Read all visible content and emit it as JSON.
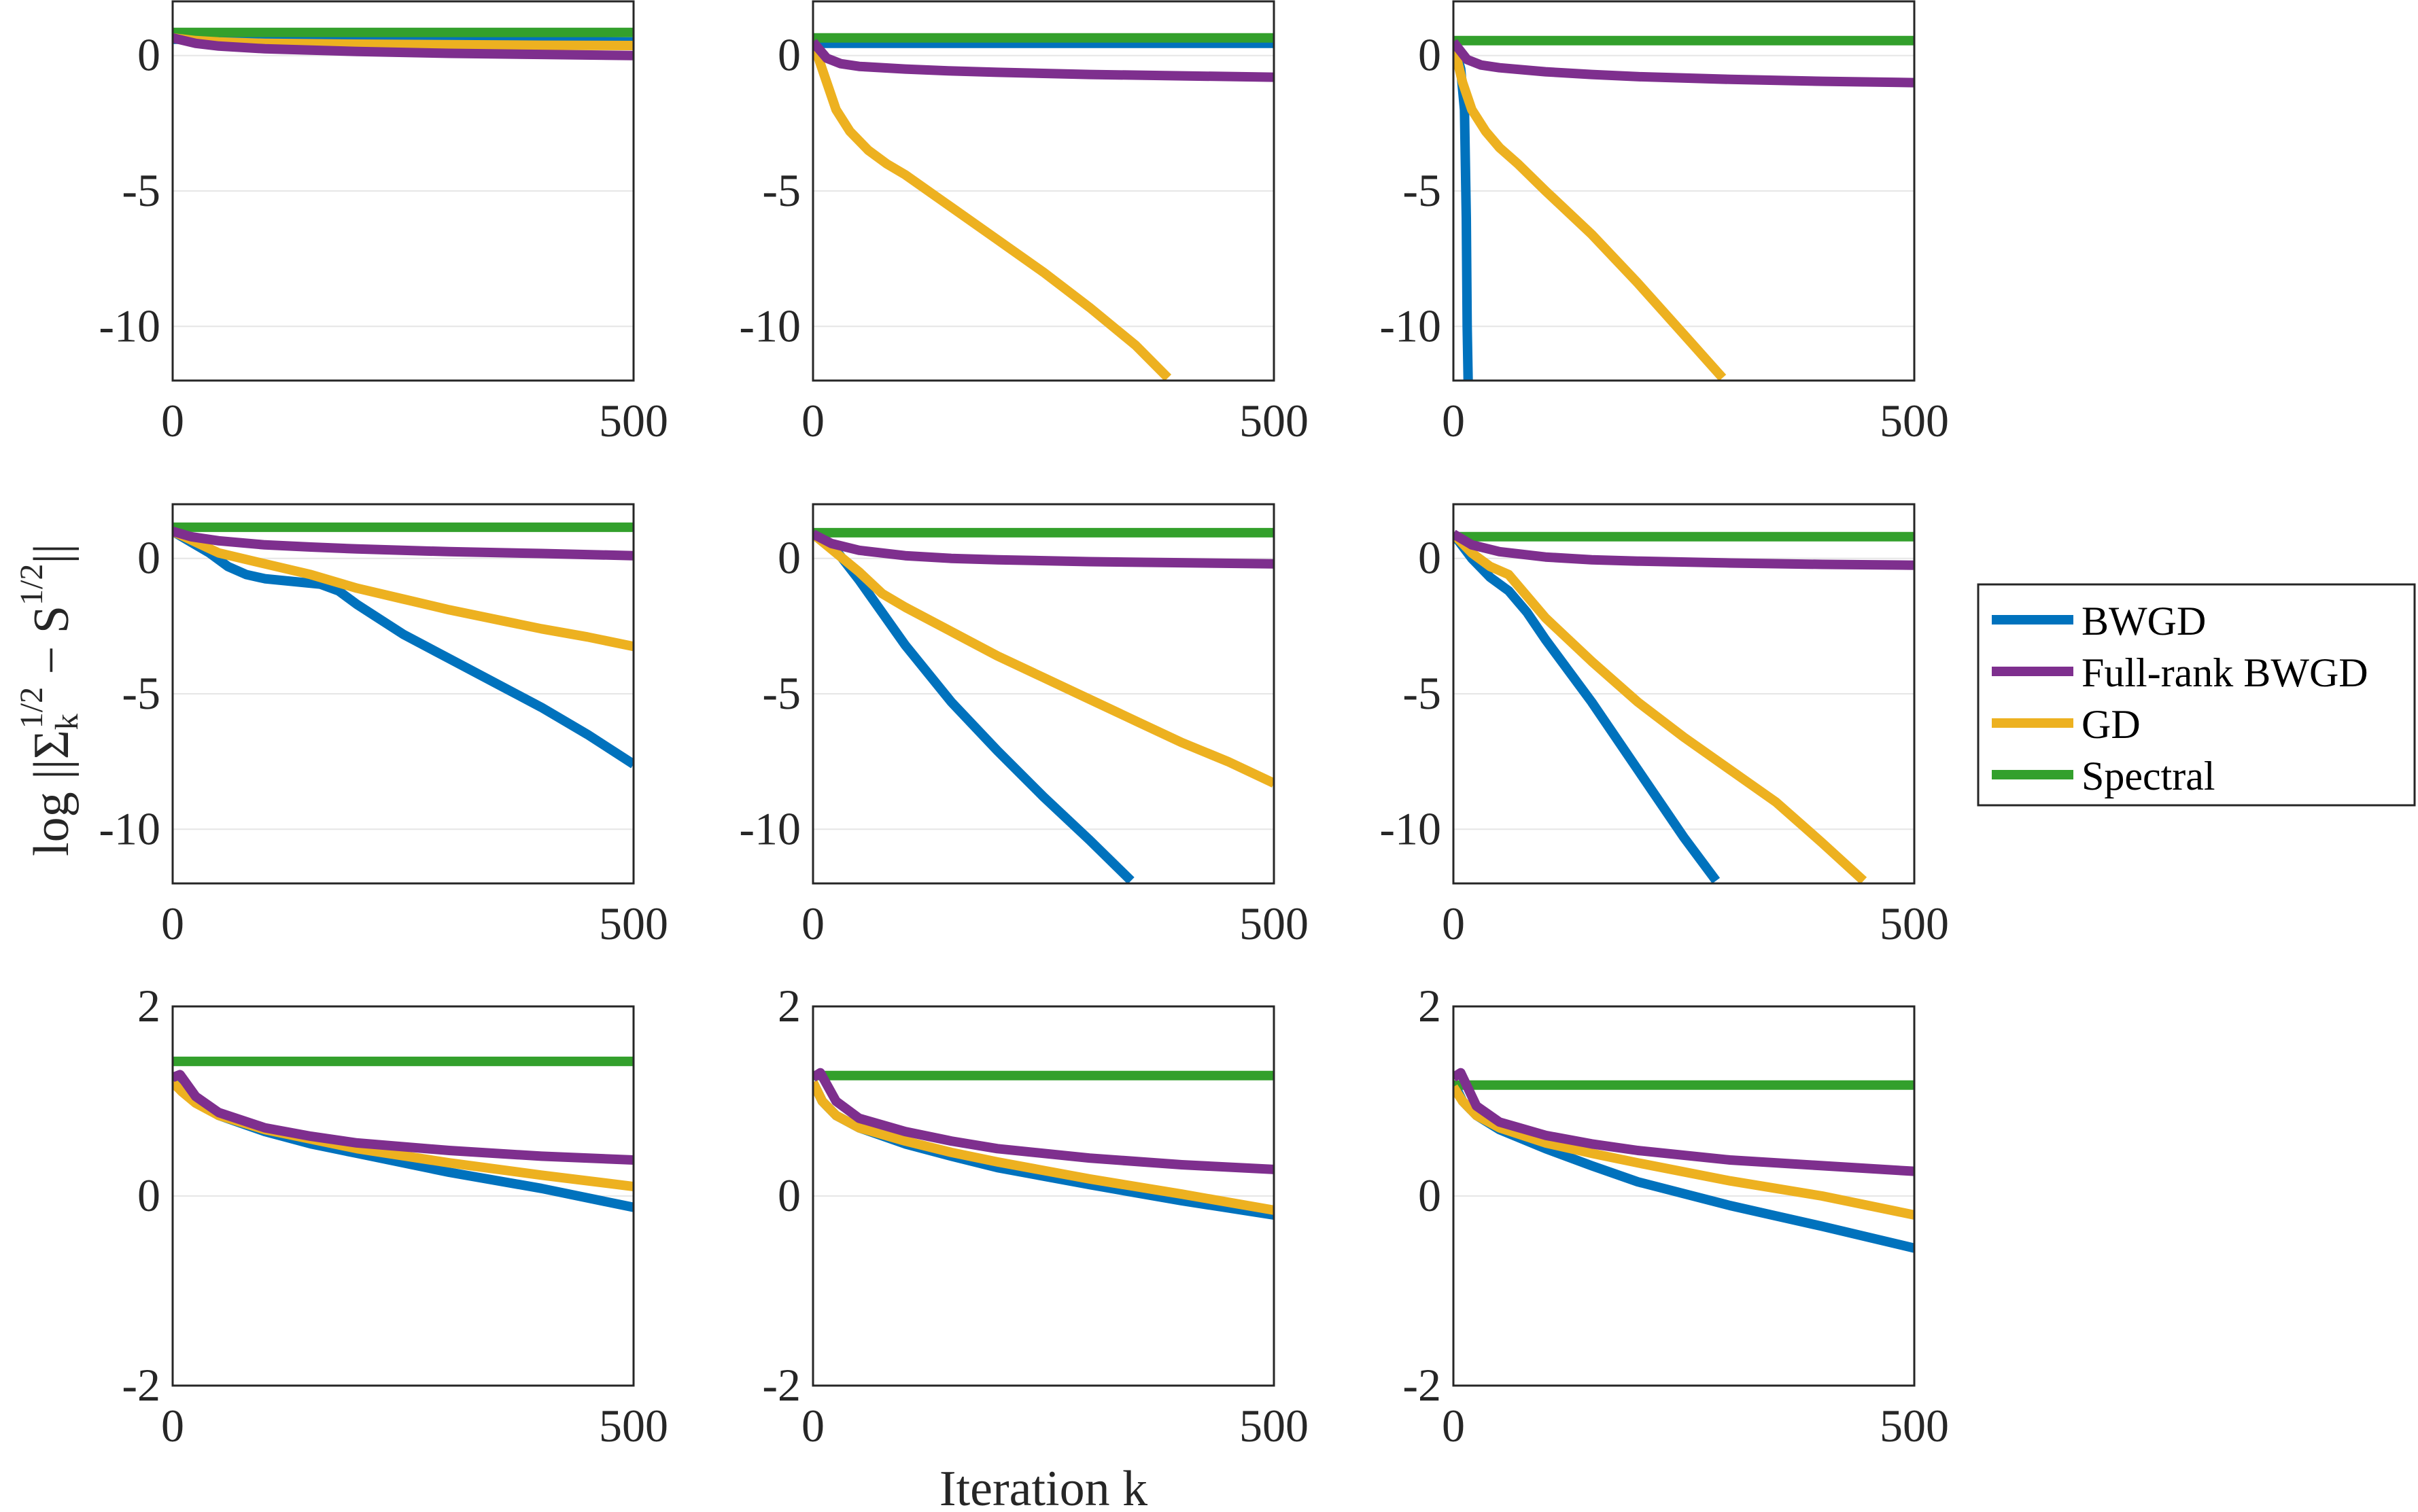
{
  "colors": {
    "BWGD": "#0072BD",
    "Full-rank BWGD": "#7E2F8E",
    "GD": "#EDB120",
    "Spectral": "#33A02C",
    "grid": "#e6e6e6",
    "axis": "#262626"
  },
  "labels": {
    "xlabel": "Iteration k",
    "ylabel": "log ||Σk^1/2 − S^1/2||",
    "ylabel_parts": {
      "pre": "log ||Σ",
      "k": "k",
      "exp1": "1/2",
      "mid": " − S",
      "exp2": "1/2",
      "post": "||"
    }
  },
  "chart_data": [
    {
      "type": "line",
      "panel": "row1-col1",
      "xlim": [
        0,
        500
      ],
      "ylim": [
        -12,
        2
      ],
      "yticks": [
        0,
        -5,
        -10
      ],
      "ytick_labels": [
        "0",
        "-5",
        "-10"
      ],
      "xticks": [
        0,
        500
      ],
      "xtick_labels": [
        "0",
        "500"
      ],
      "series": [
        {
          "name": "BWGD",
          "x": [
            0,
            500
          ],
          "y": [
            0.6,
            0.5
          ]
        },
        {
          "name": "Spectral",
          "x": [
            0,
            500
          ],
          "y": [
            0.85,
            0.85
          ]
        },
        {
          "name": "GD",
          "x": [
            0,
            25,
            50,
            100,
            200,
            300,
            400,
            500
          ],
          "y": [
            0.65,
            0.55,
            0.5,
            0.45,
            0.42,
            0.4,
            0.38,
            0.37
          ]
        },
        {
          "name": "Full-rank BWGD",
          "x": [
            0,
            25,
            50,
            100,
            150,
            200,
            300,
            400,
            500
          ],
          "y": [
            0.65,
            0.45,
            0.35,
            0.25,
            0.2,
            0.15,
            0.08,
            0.04,
            0.0
          ]
        }
      ]
    },
    {
      "type": "line",
      "panel": "row1-col2",
      "xlim": [
        0,
        500
      ],
      "ylim": [
        -12,
        2
      ],
      "yticks": [
        0,
        -5,
        -10
      ],
      "ytick_labels": [
        "0",
        "-5",
        "-10"
      ],
      "xticks": [
        0,
        500
      ],
      "xtick_labels": [
        "0",
        "500"
      ],
      "series": [
        {
          "name": "BWGD",
          "x": [
            0,
            500
          ],
          "y": [
            0.45,
            0.45
          ]
        },
        {
          "name": "Spectral",
          "x": [
            0,
            500
          ],
          "y": [
            0.65,
            0.65
          ]
        },
        {
          "name": "GD",
          "x": [
            0,
            8,
            15,
            25,
            40,
            60,
            80,
            100,
            150,
            200,
            250,
            300,
            350,
            385
          ],
          "y": [
            0.5,
            -0.3,
            -1.0,
            -2.0,
            -2.8,
            -3.5,
            -4.0,
            -4.4,
            -5.6,
            -6.8,
            -8.0,
            -9.3,
            -10.7,
            -11.9
          ]
        },
        {
          "name": "Full-rank BWGD",
          "x": [
            0,
            15,
            30,
            50,
            100,
            150,
            200,
            300,
            400,
            500
          ],
          "y": [
            0.5,
            -0.1,
            -0.3,
            -0.4,
            -0.5,
            -0.57,
            -0.62,
            -0.7,
            -0.75,
            -0.8
          ]
        }
      ]
    },
    {
      "type": "line",
      "panel": "row1-col3",
      "xlim": [
        0,
        500
      ],
      "ylim": [
        -12,
        2
      ],
      "yticks": [
        0,
        -5,
        -10
      ],
      "ytick_labels": [
        "0",
        "-5",
        "-10"
      ],
      "xticks": [
        0,
        500
      ],
      "xtick_labels": [
        "0",
        "500"
      ],
      "series": [
        {
          "name": "BWGD",
          "x": [
            0,
            8,
            12,
            14,
            15,
            16
          ],
          "y": [
            0.5,
            -0.5,
            -2.0,
            -6.0,
            -10.0,
            -12.0
          ]
        },
        {
          "name": "Spectral",
          "x": [
            0,
            500
          ],
          "y": [
            0.55,
            0.55
          ]
        },
        {
          "name": "GD",
          "x": [
            0,
            5,
            10,
            20,
            35,
            50,
            70,
            100,
            150,
            200,
            250,
            292
          ],
          "y": [
            0.5,
            -0.3,
            -1.0,
            -2.0,
            -2.8,
            -3.4,
            -4.0,
            -5.0,
            -6.6,
            -8.4,
            -10.3,
            -11.9
          ]
        },
        {
          "name": "Full-rank BWGD",
          "x": [
            0,
            15,
            30,
            50,
            100,
            150,
            200,
            300,
            400,
            500
          ],
          "y": [
            0.5,
            -0.15,
            -0.35,
            -0.45,
            -0.6,
            -0.7,
            -0.78,
            -0.88,
            -0.95,
            -1.0
          ]
        }
      ]
    },
    {
      "type": "line",
      "panel": "row2-col1",
      "xlim": [
        0,
        500
      ],
      "ylim": [
        -12,
        2
      ],
      "yticks": [
        0,
        -5,
        -10
      ],
      "ytick_labels": [
        "0",
        "-5",
        "-10"
      ],
      "xticks": [
        0,
        500
      ],
      "xtick_labels": [
        "0",
        "500"
      ],
      "series": [
        {
          "name": "BWGD",
          "x": [
            0,
            20,
            40,
            60,
            80,
            100,
            130,
            160,
            180,
            200,
            250,
            300,
            350,
            400,
            450,
            500
          ],
          "y": [
            1.0,
            0.6,
            0.2,
            -0.3,
            -0.6,
            -0.75,
            -0.85,
            -0.95,
            -1.2,
            -1.7,
            -2.8,
            -3.7,
            -4.6,
            -5.5,
            -6.5,
            -7.6
          ]
        },
        {
          "name": "Spectral",
          "x": [
            0,
            500
          ],
          "y": [
            1.15,
            1.15
          ]
        },
        {
          "name": "GD",
          "x": [
            0,
            25,
            50,
            100,
            150,
            200,
            250,
            300,
            350,
            400,
            450,
            500
          ],
          "y": [
            1.0,
            0.6,
            0.2,
            -0.2,
            -0.6,
            -1.1,
            -1.5,
            -1.9,
            -2.25,
            -2.6,
            -2.9,
            -3.25
          ]
        },
        {
          "name": "Full-rank BWGD",
          "x": [
            0,
            20,
            50,
            100,
            150,
            200,
            300,
            400,
            500
          ],
          "y": [
            1.0,
            0.8,
            0.65,
            0.5,
            0.42,
            0.35,
            0.25,
            0.18,
            0.1
          ]
        }
      ]
    },
    {
      "type": "line",
      "panel": "row2-col2",
      "xlim": [
        0,
        500
      ],
      "ylim": [
        -12,
        2
      ],
      "yticks": [
        0,
        -5,
        -10
      ],
      "ytick_labels": [
        "0",
        "-5",
        "-10"
      ],
      "xticks": [
        0,
        500
      ],
      "xtick_labels": [
        "0",
        "500"
      ],
      "series": [
        {
          "name": "BWGD",
          "x": [
            0,
            25,
            50,
            75,
            100,
            150,
            200,
            250,
            300,
            345
          ],
          "y": [
            0.9,
            0.3,
            -0.8,
            -2.0,
            -3.2,
            -5.3,
            -7.1,
            -8.8,
            -10.4,
            -11.9
          ]
        },
        {
          "name": "Spectral",
          "x": [
            0,
            500
          ],
          "y": [
            0.95,
            0.95
          ]
        },
        {
          "name": "GD",
          "x": [
            0,
            25,
            50,
            75,
            100,
            150,
            200,
            250,
            300,
            350,
            400,
            450,
            500
          ],
          "y": [
            0.9,
            0.2,
            -0.5,
            -1.3,
            -1.8,
            -2.7,
            -3.6,
            -4.4,
            -5.2,
            -6.0,
            -6.8,
            -7.5,
            -8.3
          ]
        },
        {
          "name": "Full-rank BWGD",
          "x": [
            0,
            20,
            50,
            100,
            150,
            200,
            300,
            400,
            500
          ],
          "y": [
            0.9,
            0.55,
            0.3,
            0.1,
            0.0,
            -0.05,
            -0.12,
            -0.16,
            -0.2
          ]
        }
      ]
    },
    {
      "type": "line",
      "panel": "row2-col3",
      "xlim": [
        0,
        500
      ],
      "ylim": [
        -12,
        2
      ],
      "yticks": [
        0,
        -5,
        -10
      ],
      "ytick_labels": [
        "0",
        "-5",
        "-10"
      ],
      "xticks": [
        0,
        500
      ],
      "xtick_labels": [
        "0",
        "500"
      ],
      "series": [
        {
          "name": "BWGD",
          "x": [
            0,
            20,
            40,
            60,
            80,
            100,
            150,
            200,
            250,
            285
          ],
          "y": [
            0.9,
            0.0,
            -0.7,
            -1.2,
            -2.0,
            -3.0,
            -5.3,
            -7.8,
            -10.3,
            -11.9
          ]
        },
        {
          "name": "Spectral",
          "x": [
            0,
            500
          ],
          "y": [
            0.8,
            0.8
          ]
        },
        {
          "name": "GD",
          "x": [
            0,
            20,
            40,
            60,
            80,
            100,
            150,
            200,
            250,
            300,
            350,
            400,
            445
          ],
          "y": [
            0.9,
            0.2,
            -0.3,
            -0.6,
            -1.4,
            -2.2,
            -3.8,
            -5.3,
            -6.6,
            -7.8,
            -9.0,
            -10.5,
            -11.9
          ]
        },
        {
          "name": "Full-rank BWGD",
          "x": [
            0,
            20,
            50,
            100,
            150,
            200,
            300,
            400,
            500
          ],
          "y": [
            0.9,
            0.5,
            0.25,
            0.05,
            -0.05,
            -0.1,
            -0.17,
            -0.22,
            -0.25
          ]
        }
      ]
    },
    {
      "type": "line",
      "panel": "row3-col1",
      "xlim": [
        0,
        500
      ],
      "ylim": [
        -2,
        2
      ],
      "yticks": [
        2,
        0,
        -2
      ],
      "ytick_labels": [
        "2",
        "0",
        "-2"
      ],
      "xticks": [
        0,
        500
      ],
      "xtick_labels": [
        "0",
        "500"
      ],
      "series": [
        {
          "name": "BWGD",
          "x": [
            0,
            10,
            25,
            50,
            100,
            150,
            200,
            300,
            400,
            500
          ],
          "y": [
            1.25,
            1.15,
            1.0,
            0.85,
            0.68,
            0.55,
            0.45,
            0.25,
            0.08,
            -0.12
          ]
        },
        {
          "name": "Spectral",
          "x": [
            0,
            500
          ],
          "y": [
            1.42,
            1.42
          ]
        },
        {
          "name": "GD",
          "x": [
            0,
            10,
            25,
            50,
            100,
            150,
            200,
            300,
            400,
            500
          ],
          "y": [
            1.2,
            1.1,
            0.98,
            0.85,
            0.7,
            0.6,
            0.5,
            0.35,
            0.22,
            0.1
          ]
        },
        {
          "name": "Full-rank BWGD",
          "x": [
            0,
            8,
            25,
            50,
            100,
            150,
            200,
            300,
            400,
            500
          ],
          "y": [
            1.25,
            1.28,
            1.05,
            0.88,
            0.72,
            0.63,
            0.56,
            0.48,
            0.42,
            0.38
          ]
        }
      ]
    },
    {
      "type": "line",
      "panel": "row3-col2",
      "xlim": [
        0,
        500
      ],
      "ylim": [
        -2,
        2
      ],
      "yticks": [
        2,
        0,
        -2
      ],
      "ytick_labels": [
        "2",
        "0",
        "-2"
      ],
      "xticks": [
        0,
        500
      ],
      "xtick_labels": [
        "0",
        "500"
      ],
      "series": [
        {
          "name": "BWGD",
          "x": [
            0,
            10,
            25,
            50,
            100,
            150,
            200,
            300,
            400,
            500
          ],
          "y": [
            1.2,
            1.0,
            0.85,
            0.72,
            0.55,
            0.42,
            0.3,
            0.12,
            -0.05,
            -0.2
          ]
        },
        {
          "name": "Spectral",
          "x": [
            0,
            500
          ],
          "y": [
            1.27,
            1.27
          ]
        },
        {
          "name": "GD",
          "x": [
            0,
            10,
            25,
            50,
            100,
            150,
            200,
            300,
            400,
            500
          ],
          "y": [
            1.2,
            1.0,
            0.85,
            0.72,
            0.58,
            0.46,
            0.36,
            0.18,
            0.02,
            -0.15
          ]
        },
        {
          "name": "Full-rank BWGD",
          "x": [
            0,
            8,
            25,
            50,
            100,
            150,
            200,
            300,
            400,
            500
          ],
          "y": [
            1.25,
            1.3,
            1.0,
            0.82,
            0.68,
            0.58,
            0.5,
            0.4,
            0.33,
            0.28
          ]
        }
      ]
    },
    {
      "type": "line",
      "panel": "row3-col3",
      "xlim": [
        0,
        500
      ],
      "ylim": [
        -2,
        2
      ],
      "yticks": [
        2,
        0,
        -2
      ],
      "ytick_labels": [
        "2",
        "0",
        "-2"
      ],
      "xticks": [
        0,
        500
      ],
      "xtick_labels": [
        "0",
        "500"
      ],
      "series": [
        {
          "name": "BWGD",
          "x": [
            0,
            10,
            25,
            50,
            100,
            150,
            200,
            300,
            400,
            500
          ],
          "y": [
            1.2,
            1.0,
            0.85,
            0.7,
            0.5,
            0.32,
            0.15,
            -0.1,
            -0.32,
            -0.55
          ]
        },
        {
          "name": "Spectral",
          "x": [
            0,
            500
          ],
          "y": [
            1.17,
            1.17
          ]
        },
        {
          "name": "GD",
          "x": [
            0,
            10,
            25,
            50,
            100,
            150,
            200,
            300,
            400,
            500
          ],
          "y": [
            1.15,
            1.0,
            0.85,
            0.72,
            0.56,
            0.45,
            0.35,
            0.16,
            0.0,
            -0.2
          ]
        },
        {
          "name": "Full-rank BWGD",
          "x": [
            0,
            8,
            25,
            50,
            100,
            150,
            200,
            300,
            400,
            500
          ],
          "y": [
            1.25,
            1.3,
            0.95,
            0.78,
            0.64,
            0.55,
            0.48,
            0.38,
            0.32,
            0.26
          ]
        }
      ]
    }
  ],
  "legend": {
    "position": "right",
    "entries": [
      "BWGD",
      "Full-rank BWGD",
      "GD",
      "Spectral"
    ]
  }
}
